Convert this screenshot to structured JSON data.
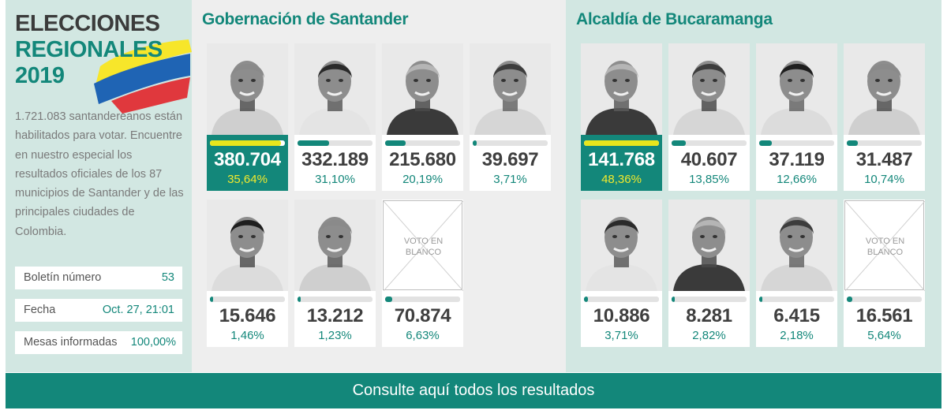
{
  "sidebar": {
    "title": [
      "ELECCIONES",
      "REGIONALES",
      "2019"
    ],
    "intro": "1.721.083 santandereanos están habilitados para votar. Encuentre en nuestro especial los resultados oficiales de los 87 municipios de Santander y de las principales ciudades de Colombia.",
    "info": [
      {
        "label": "Boletín número",
        "value": "53"
      },
      {
        "label": "Fecha",
        "value": "Oct. 27, 21:01"
      },
      {
        "label": "Mesas informadas",
        "value": "100,00%"
      }
    ],
    "flag_colors": [
      "#f7e62a",
      "#1f64b4",
      "#e0383d"
    ]
  },
  "gobernacion": {
    "title": "Gobernación de Santander",
    "candidates": [
      {
        "votes": "380.704",
        "pct": "35,64%",
        "share": 0.3564,
        "winner": true
      },
      {
        "votes": "332.189",
        "pct": "31,10%",
        "share": 0.311,
        "winner": false
      },
      {
        "votes": "215.680",
        "pct": "20,19%",
        "share": 0.2019,
        "winner": false
      },
      {
        "votes": "39.697",
        "pct": "3,71%",
        "share": 0.0371,
        "winner": false
      },
      {
        "votes": "15.646",
        "pct": "1,46%",
        "share": 0.0146,
        "winner": false
      },
      {
        "votes": "13.212",
        "pct": "1,23%",
        "share": 0.0123,
        "winner": false
      },
      {
        "votes": "70.874",
        "pct": "6,63%",
        "share": 0.0663,
        "winner": false,
        "blank": true,
        "blank_label": "VOTO EN BLANCO"
      }
    ]
  },
  "alcaldia": {
    "title": "Alcaldía de Bucaramanga",
    "candidates": [
      {
        "votes": "141.768",
        "pct": "48,36%",
        "share": 0.4836,
        "winner": true
      },
      {
        "votes": "40.607",
        "pct": "13,85%",
        "share": 0.1385,
        "winner": false
      },
      {
        "votes": "37.119",
        "pct": "12,66%",
        "share": 0.1266,
        "winner": false
      },
      {
        "votes": "31.487",
        "pct": "10,74%",
        "share": 0.1074,
        "winner": false
      },
      {
        "votes": "10.886",
        "pct": "3,71%",
        "share": 0.0371,
        "winner": false
      },
      {
        "votes": "8.281",
        "pct": "2,82%",
        "share": 0.0282,
        "winner": false
      },
      {
        "votes": "6.415",
        "pct": "2,18%",
        "share": 0.0218,
        "winner": false
      },
      {
        "votes": "16.561",
        "pct": "5,64%",
        "share": 0.0564,
        "winner": false,
        "blank": true,
        "blank_label": "VOTO EN BLANCO"
      }
    ]
  },
  "cta": {
    "label": "Consulte aquí todos los resultados"
  },
  "colors": {
    "accent": "#13877a",
    "winner_bar": "#e8e61c",
    "winner_pct": "#f2ea2d",
    "sidebar_bg": "#d2e7e2",
    "gov_bg": "#eeeeee"
  }
}
